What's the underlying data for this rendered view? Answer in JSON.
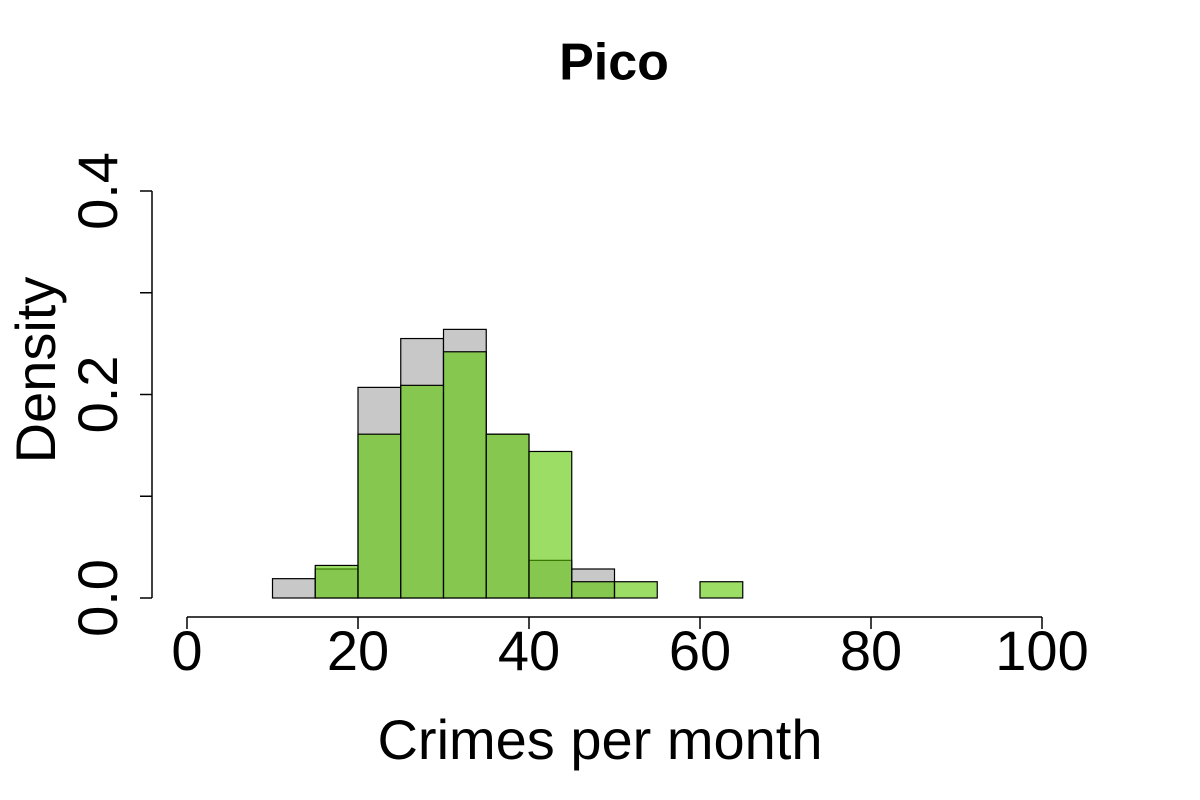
{
  "chart_data": {
    "type": "histogram",
    "title": "Pico",
    "xlabel": "Crimes per month",
    "ylabel": "Density",
    "bins": [
      0,
      5,
      10,
      15,
      20,
      25,
      30,
      35,
      40,
      45,
      50,
      55,
      60,
      65
    ],
    "series": [
      {
        "color": "#c8c8c8",
        "opacity": 1,
        "values": [
          0,
          0,
          0.019,
          0.0285,
          0.207,
          0.255,
          0.264,
          0.161,
          0.037,
          0.0285,
          0,
          0,
          0
        ]
      },
      {
        "color": "#5ac600",
        "opacity": 0.6,
        "values": [
          0,
          0,
          0,
          0.032,
          0.161,
          0.209,
          0.242,
          0.161,
          0.144,
          0.016,
          0.016,
          0,
          0.016
        ]
      }
    ],
    "xlim": [
      0,
      100
    ],
    "xticks": [
      0,
      20,
      40,
      60,
      80,
      100
    ],
    "ylim": [
      0,
      0.4
    ],
    "yticks": [
      {
        "value": 0,
        "label": "0.0"
      },
      {
        "value": 0.1,
        "label": null
      },
      {
        "value": 0.2,
        "label": "0.2"
      },
      {
        "value": 0.3,
        "label": null
      },
      {
        "value": 0.4,
        "label": "0.4"
      }
    ]
  }
}
